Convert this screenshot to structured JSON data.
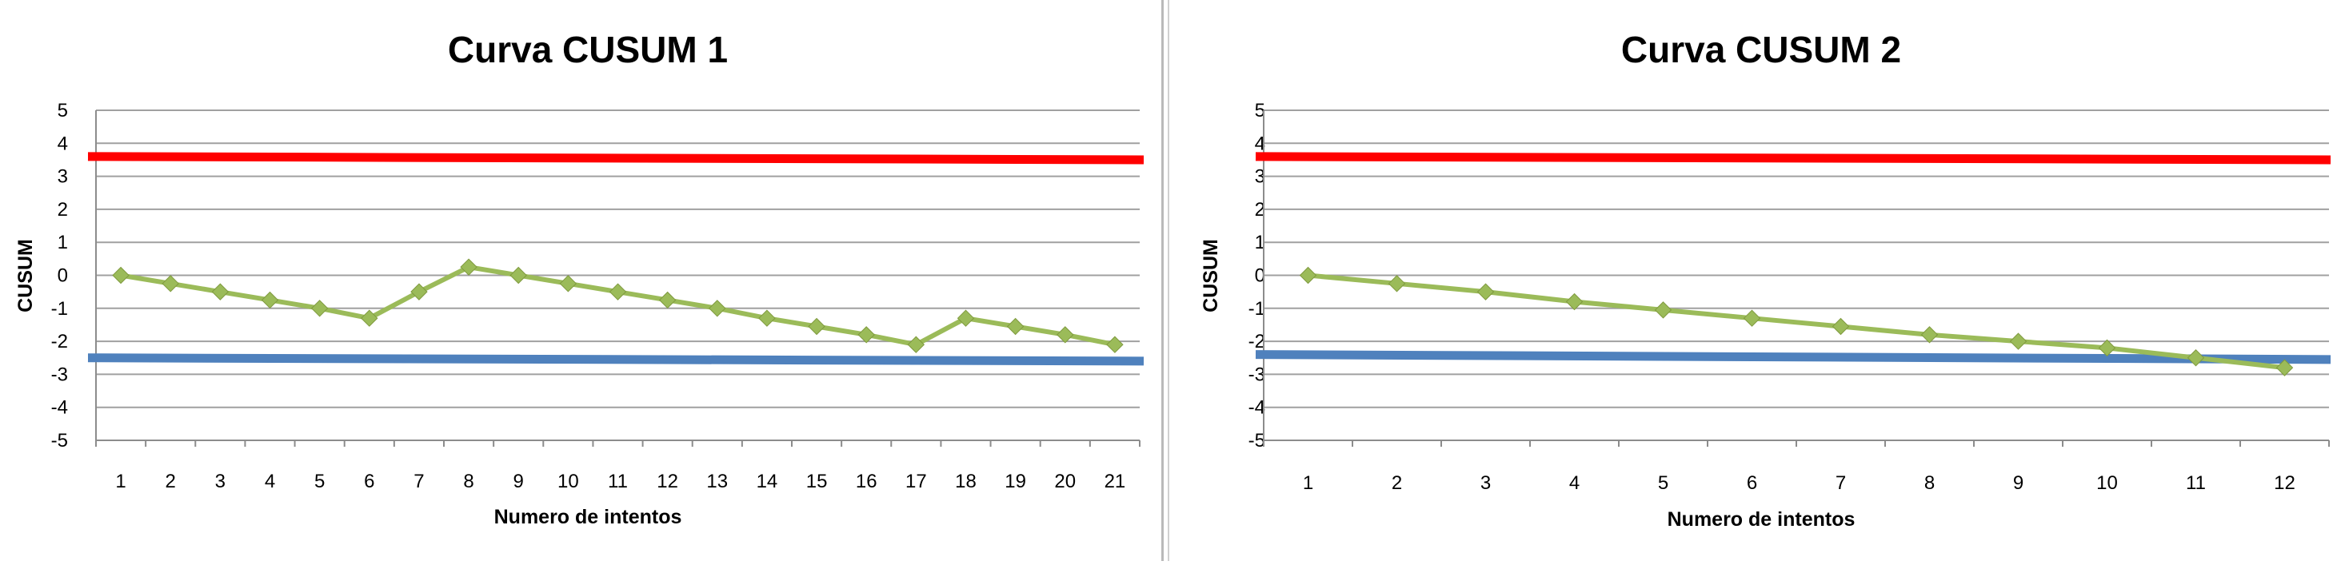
{
  "chart_data": [
    {
      "type": "line",
      "title": "Curva CUSUM 1",
      "xlabel": "Numero de intentos",
      "ylabel": "CUSUM",
      "ylim": [
        -5,
        5
      ],
      "yticks": [
        5,
        4,
        3,
        2,
        1,
        0,
        -1,
        -2,
        -3,
        -4,
        -5
      ],
      "categories": [
        "1",
        "2",
        "3",
        "4",
        "5",
        "6",
        "7",
        "8",
        "9",
        "10",
        "11",
        "12",
        "13",
        "14",
        "15",
        "16",
        "17",
        "18",
        "19",
        "20",
        "21"
      ],
      "grid": true,
      "series": [
        {
          "color": "#9bbb59",
          "marker": "diamond",
          "values": [
            0,
            -0.25,
            -0.5,
            -0.75,
            -1.0,
            -1.3,
            -0.5,
            0.25,
            0,
            -0.25,
            -0.5,
            -0.75,
            -1.0,
            -1.3,
            -1.55,
            -1.8,
            -2.1,
            -1.3,
            -1.55,
            -1.8,
            -2.1
          ]
        }
      ],
      "limits": [
        {
          "color": "#ff0000",
          "value_start": 3.6,
          "value_end": 3.5
        },
        {
          "color": "#4f81bd",
          "value_start": -2.5,
          "value_end": -2.6
        }
      ]
    },
    {
      "type": "line",
      "title": "Curva CUSUM 2",
      "xlabel": "Numero de intentos",
      "ylabel": "CUSUM",
      "ylim": [
        -5,
        5
      ],
      "yticks": [
        5,
        4,
        3,
        2,
        1,
        0,
        -1,
        -2,
        -3,
        -4,
        -5
      ],
      "categories": [
        "1",
        "2",
        "3",
        "4",
        "5",
        "6",
        "7",
        "8",
        "9",
        "10",
        "11",
        "12"
      ],
      "grid": true,
      "series": [
        {
          "color": "#9bbb59",
          "marker": "diamond",
          "values": [
            0,
            -0.25,
            -0.5,
            -0.8,
            -1.05,
            -1.3,
            -1.55,
            -1.8,
            -2.0,
            -2.2,
            -2.5,
            -2.8
          ]
        }
      ],
      "limits": [
        {
          "color": "#ff0000",
          "value_start": 3.6,
          "value_end": 3.5
        },
        {
          "color": "#4f81bd",
          "value_start": -2.4,
          "value_end": -2.55
        }
      ]
    }
  ]
}
